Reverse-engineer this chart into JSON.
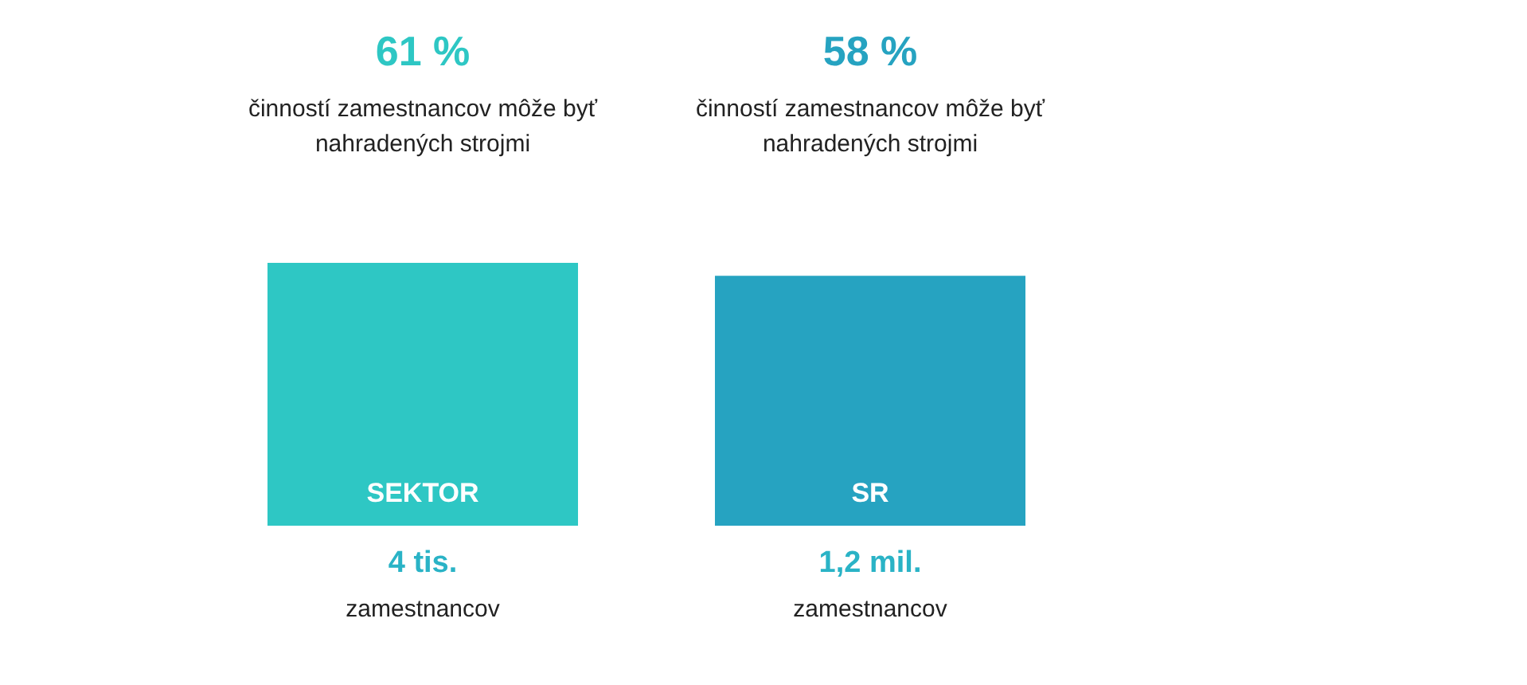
{
  "chart_data": {
    "type": "bar",
    "categories": [
      "SEKTOR",
      "SR"
    ],
    "values": [
      61,
      58
    ],
    "colors": [
      "#2ec7c4",
      "#26a3c1"
    ],
    "value_labels": [
      "61 %",
      "58 %"
    ],
    "annotations": [
      "činností zamestnancov môže byť nahradených strojmi",
      "4 tis.",
      "zamestnancov",
      "činností zamestnancov môže byť nahradených strojmi",
      "1,2 mil.",
      "zamestnancov"
    ]
  }
}
